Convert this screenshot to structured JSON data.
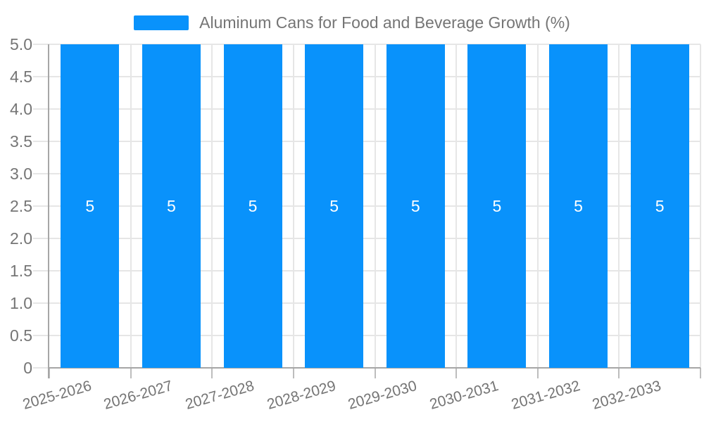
{
  "chart_data": {
    "type": "bar",
    "title": "Aluminum Cans for Food and Beverage Growth (%)",
    "categories": [
      "2025-2026",
      "2026-2027",
      "2027-2028",
      "2028-2029",
      "2029-2030",
      "2030-2031",
      "2031-2032",
      "2032-2033"
    ],
    "values": [
      5,
      5,
      5,
      5,
      5,
      5,
      5,
      5
    ],
    "bar_value_labels": [
      "5",
      "5",
      "5",
      "5",
      "5",
      "5",
      "5",
      "5"
    ],
    "xlabel": "",
    "ylabel": "",
    "ylim": [
      0,
      5
    ],
    "ytick_labels": [
      "5.0",
      "4.5",
      "4.0",
      "3.5",
      "3.0",
      "2.5",
      "2.0",
      "1.5",
      "1.0",
      "0.5",
      "0"
    ],
    "grid": true,
    "legend_position": "top",
    "xtick_rotation_deg": -16,
    "colors": {
      "bar": "#0992fb",
      "grid_line": "#e6e6e6",
      "axis_line": "#a6a6a6",
      "tick_mark": "#bdbdbd",
      "label_text": "#757575",
      "bar_value_text": "#ffffff",
      "background": "#ffffff"
    }
  }
}
